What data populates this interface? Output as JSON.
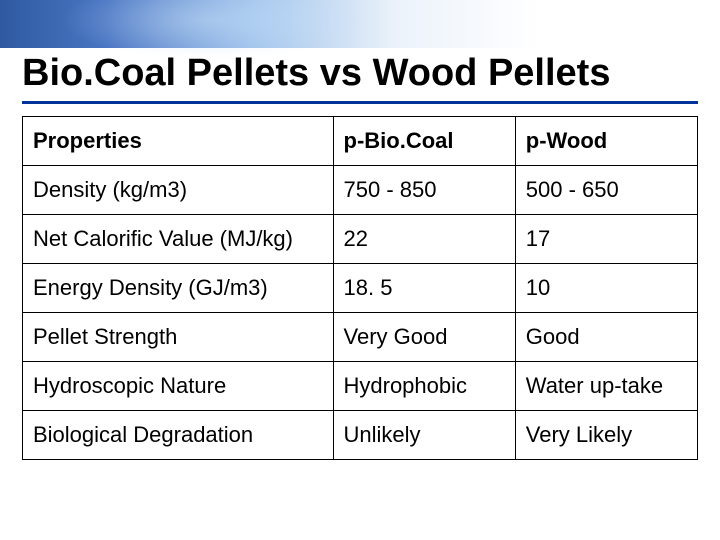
{
  "title": "Bio.Coal Pellets vs Wood Pellets",
  "table": {
    "type": "table",
    "columns": [
      "Properties",
      "p-Bio.Coal",
      "p-Wood"
    ],
    "rows": [
      [
        "Density (kg/m3)",
        "750 - 850",
        "500 - 650"
      ],
      [
        "Net Calorific Value (MJ/kg)",
        "22",
        "17"
      ],
      [
        "Energy Density (GJ/m3)",
        "18. 5",
        "10"
      ],
      [
        "Pellet Strength",
        "Very Good",
        "Good"
      ],
      [
        "Hydroscopic Nature",
        "Hydrophobic",
        "Water up-take"
      ],
      [
        "Biological Degradation",
        "Unlikely",
        "Very Likely"
      ]
    ],
    "border_color": "#000000",
    "underline_color": "#003399",
    "background_color": "#ffffff",
    "title_fontsize": 38,
    "header_fontsize": 22,
    "cell_fontsize": 22,
    "column_widths_pct": [
      46,
      27,
      27
    ]
  }
}
